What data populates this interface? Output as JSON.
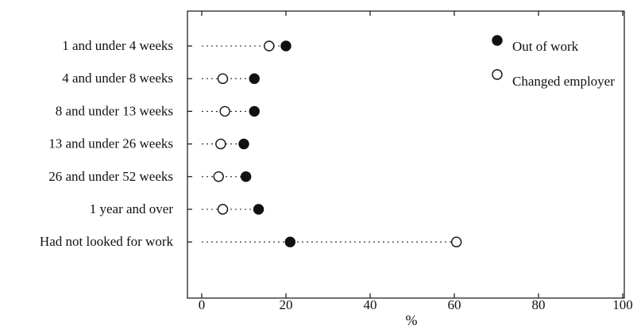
{
  "chart_data": {
    "type": "scatter",
    "subtype": "dot-plot",
    "categories": [
      "1 and under 4 weeks",
      "4 and under 8 weeks",
      "8 and under 13 weeks",
      "13 and under 26 weeks",
      "26 and under 52 weeks",
      "1 year and over",
      "Had not looked for work"
    ],
    "series": [
      {
        "name": "Out of work",
        "marker": "filled-circle",
        "color": "#111111",
        "values": [
          20,
          12.5,
          12.5,
          10,
          10.5,
          13.5,
          21
        ]
      },
      {
        "name": "Changed employer",
        "marker": "open-circle",
        "color": "#111111",
        "values": [
          16,
          5,
          5.5,
          4.5,
          4,
          5,
          60.5
        ]
      }
    ],
    "xlabel": "%",
    "ylabel": "",
    "xlim": [
      0,
      100
    ],
    "xticks": [
      0,
      20,
      40,
      60,
      80,
      100
    ],
    "xtick_labels": [
      "0",
      "20",
      "40",
      "60",
      "80",
      "100"
    ],
    "grid": false,
    "legend_position": "top-right",
    "guide_lines": "dotted"
  }
}
